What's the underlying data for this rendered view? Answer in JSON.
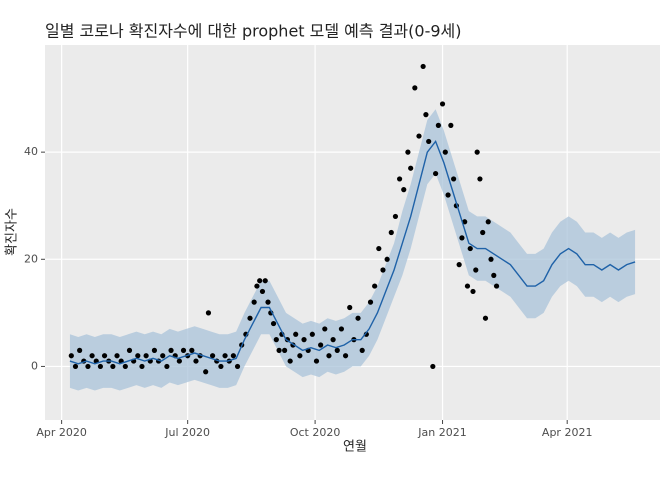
{
  "chart_data": {
    "type": "scatter",
    "title": "일별 코로나 확진자수에 대한 prophet 모델 예측 결과(0-9세)",
    "xlabel": "연월",
    "ylabel": "확진자수",
    "xlim": [
      -12,
      432
    ],
    "ylim": [
      -10,
      60
    ],
    "xticks": [
      {
        "value": 0,
        "label": "Apr 2020"
      },
      {
        "value": 91,
        "label": "Jul 2020"
      },
      {
        "value": 183,
        "label": "Oct 2020"
      },
      {
        "value": 275,
        "label": "Jan 2021"
      },
      {
        "value": 365,
        "label": "Apr 2021"
      }
    ],
    "yticks": [
      0,
      20,
      40
    ],
    "grid": true,
    "points": {
      "color": "#000000",
      "x": [
        7,
        10,
        13,
        16,
        19,
        22,
        25,
        28,
        31,
        34,
        37,
        40,
        43,
        46,
        49,
        52,
        55,
        58,
        61,
        64,
        67,
        70,
        73,
        76,
        79,
        82,
        85,
        88,
        91,
        94,
        97,
        100,
        104,
        106,
        109,
        112,
        115,
        118,
        121,
        124,
        127,
        130,
        133,
        136,
        139,
        141,
        143,
        145,
        147,
        149,
        151,
        153,
        155,
        157,
        159,
        161,
        163,
        165,
        167,
        169,
        172,
        175,
        178,
        181,
        184,
        187,
        190,
        193,
        196,
        199,
        202,
        205,
        208,
        211,
        214,
        217,
        220,
        223,
        226,
        229,
        232,
        235,
        238,
        241,
        244,
        247,
        250,
        252,
        255,
        258,
        261,
        263,
        265,
        268,
        270,
        272,
        275,
        277,
        279,
        281,
        283,
        285,
        287,
        289,
        291,
        293,
        295,
        297,
        299,
        300,
        302,
        304,
        306,
        308,
        310,
        312,
        314
      ],
      "values": [
        2,
        0,
        3,
        1,
        0,
        2,
        1,
        0,
        2,
        1,
        0,
        2,
        1,
        0,
        3,
        1,
        2,
        0,
        2,
        1,
        3,
        1,
        2,
        0,
        3,
        2,
        1,
        3,
        2,
        3,
        1,
        2,
        -1,
        10,
        2,
        1,
        0,
        2,
        1,
        2,
        0,
        4,
        6,
        9,
        12,
        15,
        16,
        14,
        16,
        12,
        10,
        8,
        5,
        3,
        6,
        3,
        5,
        1,
        4,
        6,
        2,
        5,
        3,
        6,
        1,
        4,
        7,
        2,
        5,
        3,
        7,
        2,
        11,
        5,
        9,
        3,
        6,
        12,
        15,
        22,
        18,
        20,
        25,
        28,
        35,
        33,
        40,
        37,
        52,
        43,
        56,
        47,
        42,
        0,
        36,
        45,
        49,
        40,
        32,
        45,
        35,
        30,
        19,
        24,
        27,
        15,
        22,
        14,
        18,
        40,
        35,
        25,
        9,
        27,
        20,
        17,
        15
      ]
    },
    "forecast": {
      "color": "#1f62a8",
      "band_color": "#a9c3da",
      "x": [
        6,
        12,
        18,
        24,
        30,
        36,
        42,
        48,
        54,
        60,
        66,
        72,
        78,
        84,
        90,
        96,
        102,
        108,
        114,
        120,
        126,
        132,
        138,
        144,
        150,
        156,
        162,
        168,
        174,
        180,
        186,
        192,
        198,
        204,
        210,
        216,
        222,
        228,
        234,
        240,
        246,
        252,
        258,
        264,
        270,
        276,
        282,
        288,
        294,
        300,
        306,
        312,
        318,
        324,
        330,
        336,
        342,
        348,
        354,
        360,
        366,
        372,
        378,
        384,
        390,
        396,
        402,
        408,
        414
      ],
      "values": [
        1,
        0.5,
        1,
        0.5,
        1,
        1,
        0.5,
        1,
        1.5,
        1,
        1.5,
        1,
        2,
        1.5,
        2,
        2.5,
        2,
        1.5,
        1,
        1,
        1.5,
        5,
        8,
        11,
        11,
        8,
        5,
        4,
        3,
        3.5,
        3,
        4,
        3.5,
        4,
        5,
        5,
        7,
        10,
        14,
        18,
        23,
        28,
        34,
        40,
        42,
        38,
        33,
        28,
        23,
        22,
        22,
        21,
        20,
        19,
        17,
        15,
        15,
        16,
        19,
        21,
        22,
        21,
        19,
        19,
        18,
        19,
        18,
        19,
        19.5
      ],
      "lower": [
        -4,
        -4.5,
        -4,
        -4.5,
        -4,
        -4,
        -4.5,
        -4,
        -3.5,
        -4,
        -3.5,
        -4,
        -3,
        -3.5,
        -3,
        -2.5,
        -3,
        -3.5,
        -4,
        -4,
        -3.5,
        0,
        3,
        6,
        6,
        3,
        0,
        -1,
        -2,
        -1.5,
        -2,
        -1,
        -1.5,
        -1,
        0,
        0,
        2,
        5,
        9,
        13,
        17,
        22,
        28,
        34,
        36,
        32,
        27,
        22,
        17,
        16,
        16,
        15,
        14,
        13,
        11,
        9,
        9,
        10,
        13,
        15,
        16,
        15,
        13,
        13,
        12,
        13,
        12,
        13,
        13.5
      ],
      "upper": [
        6,
        5.5,
        6,
        5.5,
        6,
        6,
        5.5,
        6,
        6.5,
        6,
        6.5,
        6,
        7,
        6.5,
        7,
        7.5,
        7,
        6.5,
        6,
        6,
        6.5,
        10,
        13,
        16,
        16,
        13,
        10,
        9,
        8,
        8.5,
        8,
        9,
        8.5,
        9,
        10,
        10,
        12,
        15,
        19,
        23,
        29,
        34,
        40,
        46,
        48,
        44,
        39,
        34,
        29,
        28,
        28,
        27,
        26,
        25,
        23,
        21,
        21,
        22,
        25,
        27,
        28,
        27,
        25,
        25,
        24,
        25,
        24,
        25,
        25.5
      ]
    }
  }
}
